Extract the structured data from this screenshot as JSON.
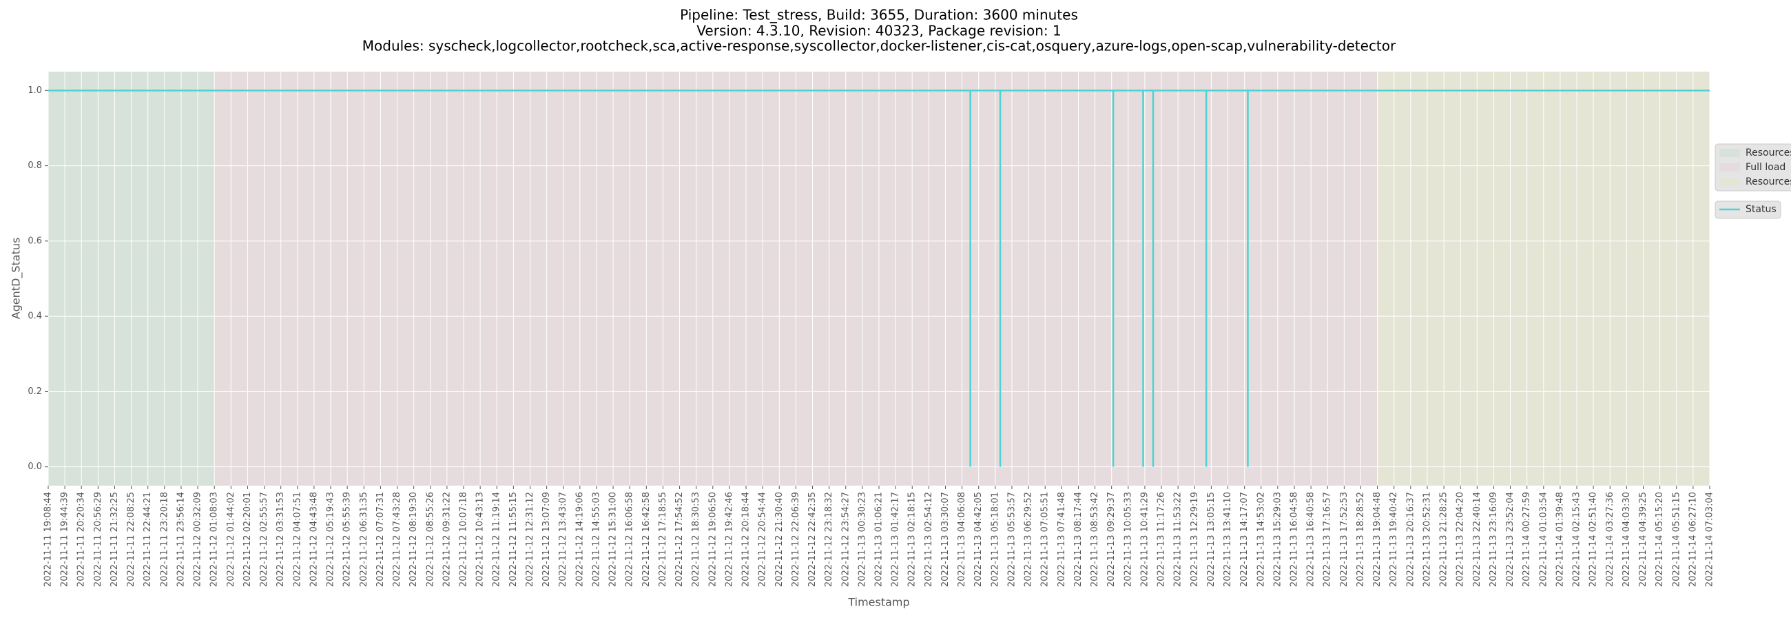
{
  "chart_data": {
    "type": "line",
    "title": [
      "Pipeline: Test_stress, Build: 3655, Duration: 3600 minutes",
      "Version: 4.3.10, Revision: 40323, Package revision: 1",
      "Modules: syscheck,logcollector,rootcheck,sca,active-response,syscollector,docker-listener,cis-cat,osquery,azure-logs,open-scap,vulnerability-detector"
    ],
    "x_label": "Timestamp",
    "y_label": "AgentD_Status",
    "xlim": [
      0,
      100
    ],
    "ylim": [
      -0.05,
      1.05
    ],
    "yticks": [
      {
        "value": 0,
        "label": "0.0"
      },
      0.2,
      0.4,
      0.6,
      0.8,
      {
        "value": 1,
        "label": "1.0"
      }
    ],
    "grid": true,
    "legend": "right",
    "spans": [
      {
        "name": "Resources",
        "start": 0,
        "end": 10,
        "color": "#b7dcc4"
      },
      {
        "name": "Full load",
        "start": 10,
        "end": 80,
        "color": "#ecc6c9"
      },
      {
        "name": "Resources",
        "start": 80,
        "end": 100,
        "color": "#e6e3b4"
      }
    ],
    "series": [
      {
        "name": "Status",
        "color": "#4fd2d2",
        "x": [
          0,
          55.5,
          55.5,
          55.5,
          57.3,
          57.3,
          57.3,
          64.1,
          64.1,
          64.1,
          65.9,
          65.9,
          65.9,
          66.5,
          66.5,
          66.5,
          69.7,
          69.7,
          69.7,
          72.2,
          72.2,
          72.2,
          100
        ],
        "values": [
          1,
          1,
          0,
          1,
          1,
          0,
          1,
          1,
          0,
          1,
          1,
          0,
          1,
          1,
          0,
          1,
          1,
          0,
          1,
          1,
          0,
          1,
          1
        ]
      }
    ],
    "xticks": [
      {
        "value": 0,
        "label": "2022-11-11 19:08:44"
      },
      {
        "value": 1,
        "label": "2022-11-11 19:44:39"
      },
      {
        "value": 2,
        "label": "2022-11-11 20:20:34"
      },
      {
        "value": 3,
        "label": "2022-11-11 20:56:29"
      },
      {
        "value": 4,
        "label": "2022-11-11 21:32:25"
      },
      {
        "value": 5,
        "label": "2022-11-11 22:08:25"
      },
      {
        "value": 6,
        "label": "2022-11-11 22:44:21"
      },
      {
        "value": 7,
        "label": "2022-11-11 23:20:18"
      },
      {
        "value": 8,
        "label": "2022-11-11 23:56:14"
      },
      {
        "value": 9,
        "label": "2022-11-12 00:32:09"
      },
      {
        "value": 10,
        "label": "2022-11-12 01:08:03"
      },
      {
        "value": 11,
        "label": "2022-11-12 01:44:02"
      },
      {
        "value": 12,
        "label": "2022-11-12 02:20:01"
      },
      {
        "value": 13,
        "label": "2022-11-12 02:55:57"
      },
      {
        "value": 14,
        "label": "2022-11-12 03:31:53"
      },
      {
        "value": 15,
        "label": "2022-11-12 04:07:51"
      },
      {
        "value": 16,
        "label": "2022-11-12 04:43:48"
      },
      {
        "value": 17,
        "label": "2022-11-12 05:19:43"
      },
      {
        "value": 18,
        "label": "2022-11-12 05:55:39"
      },
      {
        "value": 19,
        "label": "2022-11-12 06:31:35"
      },
      {
        "value": 20,
        "label": "2022-11-12 07:07:31"
      },
      {
        "value": 21,
        "label": "2022-11-12 07:43:28"
      },
      {
        "value": 22,
        "label": "2022-11-12 08:19:30"
      },
      {
        "value": 23,
        "label": "2022-11-12 08:55:26"
      },
      {
        "value": 24,
        "label": "2022-11-12 09:31:22"
      },
      {
        "value": 25,
        "label": "2022-11-12 10:07:18"
      },
      {
        "value": 26,
        "label": "2022-11-12 10:43:13"
      },
      {
        "value": 27,
        "label": "2022-11-12 11:19:14"
      },
      {
        "value": 28,
        "label": "2022-11-12 11:55:15"
      },
      {
        "value": 29,
        "label": "2022-11-12 12:31:12"
      },
      {
        "value": 30,
        "label": "2022-11-12 13:07:09"
      },
      {
        "value": 31,
        "label": "2022-11-12 13:43:07"
      },
      {
        "value": 32,
        "label": "2022-11-12 14:19:06"
      },
      {
        "value": 33,
        "label": "2022-11-12 14:55:03"
      },
      {
        "value": 34,
        "label": "2022-11-12 15:31:00"
      },
      {
        "value": 35,
        "label": "2022-11-12 16:06:58"
      },
      {
        "value": 36,
        "label": "2022-11-12 16:42:58"
      },
      {
        "value": 37,
        "label": "2022-11-12 17:18:55"
      },
      {
        "value": 38,
        "label": "2022-11-12 17:54:52"
      },
      {
        "value": 39,
        "label": "2022-11-12 18:30:53"
      },
      {
        "value": 40,
        "label": "2022-11-12 19:06:50"
      },
      {
        "value": 41,
        "label": "2022-11-12 19:42:46"
      },
      {
        "value": 42,
        "label": "2022-11-12 20:18:44"
      },
      {
        "value": 43,
        "label": "2022-11-12 20:54:44"
      },
      {
        "value": 44,
        "label": "2022-11-12 21:30:40"
      },
      {
        "value": 45,
        "label": "2022-11-12 22:06:39"
      },
      {
        "value": 46,
        "label": "2022-11-12 22:42:35"
      },
      {
        "value": 47,
        "label": "2022-11-12 23:18:32"
      },
      {
        "value": 48,
        "label": "2022-11-12 23:54:27"
      },
      {
        "value": 49,
        "label": "2022-11-13 00:30:23"
      },
      {
        "value": 50,
        "label": "2022-11-13 01:06:21"
      },
      {
        "value": 51,
        "label": "2022-11-13 01:42:17"
      },
      {
        "value": 52,
        "label": "2022-11-13 02:18:15"
      },
      {
        "value": 53,
        "label": "2022-11-13 02:54:12"
      },
      {
        "value": 54,
        "label": "2022-11-13 03:30:07"
      },
      {
        "value": 55,
        "label": "2022-11-13 04:06:08"
      },
      {
        "value": 56,
        "label": "2022-11-13 04:42:05"
      },
      {
        "value": 57,
        "label": "2022-11-13 05:18:01"
      },
      {
        "value": 58,
        "label": "2022-11-13 05:53:57"
      },
      {
        "value": 59,
        "label": "2022-11-13 06:29:52"
      },
      {
        "value": 60,
        "label": "2022-11-13 07:05:51"
      },
      {
        "value": 61,
        "label": "2022-11-13 07:41:48"
      },
      {
        "value": 62,
        "label": "2022-11-13 08:17:44"
      },
      {
        "value": 63,
        "label": "2022-11-13 08:53:42"
      },
      {
        "value": 64,
        "label": "2022-11-13 09:29:37"
      },
      {
        "value": 65,
        "label": "2022-11-13 10:05:33"
      },
      {
        "value": 66,
        "label": "2022-11-13 10:41:29"
      },
      {
        "value": 67,
        "label": "2022-11-13 11:17:26"
      },
      {
        "value": 68,
        "label": "2022-11-13 11:53:22"
      },
      {
        "value": 69,
        "label": "2022-11-13 12:29:19"
      },
      {
        "value": 70,
        "label": "2022-11-13 13:05:15"
      },
      {
        "value": 71,
        "label": "2022-11-13 13:41:10"
      },
      {
        "value": 72,
        "label": "2022-11-13 14:17:07"
      },
      {
        "value": 73,
        "label": "2022-11-13 14:53:02"
      },
      {
        "value": 74,
        "label": "2022-11-13 15:29:03"
      },
      {
        "value": 75,
        "label": "2022-11-13 16:04:58"
      },
      {
        "value": 76,
        "label": "2022-11-13 16:40:58"
      },
      {
        "value": 77,
        "label": "2022-11-13 17:16:57"
      },
      {
        "value": 78,
        "label": "2022-11-13 17:52:53"
      },
      {
        "value": 79,
        "label": "2022-11-13 18:28:52"
      },
      {
        "value": 80,
        "label": "2022-11-13 19:04:48"
      },
      {
        "value": 81,
        "label": "2022-11-13 19:40:42"
      },
      {
        "value": 82,
        "label": "2022-11-13 20:16:37"
      },
      {
        "value": 83,
        "label": "2022-11-13 20:52:31"
      },
      {
        "value": 84,
        "label": "2022-11-13 21:28:25"
      },
      {
        "value": 85,
        "label": "2022-11-13 22:04:20"
      },
      {
        "value": 86,
        "label": "2022-11-13 22:40:14"
      },
      {
        "value": 87,
        "label": "2022-11-13 23:16:09"
      },
      {
        "value": 88,
        "label": "2022-11-13 23:52:04"
      },
      {
        "value": 89,
        "label": "2022-11-14 00:27:59"
      },
      {
        "value": 90,
        "label": "2022-11-14 01:03:54"
      },
      {
        "value": 91,
        "label": "2022-11-14 01:39:48"
      },
      {
        "value": 92,
        "label": "2022-11-14 02:15:43"
      },
      {
        "value": 93,
        "label": "2022-11-14 02:51:40"
      },
      {
        "value": 94,
        "label": "2022-11-14 03:27:36"
      },
      {
        "value": 95,
        "label": "2022-11-14 04:03:30"
      },
      {
        "value": 96,
        "label": "2022-11-14 04:39:25"
      },
      {
        "value": 97,
        "label": "2022-11-14 05:15:20"
      },
      {
        "value": 98,
        "label": "2022-11-14 05:51:15"
      },
      {
        "value": 99,
        "label": "2022-11-14 06:27:10"
      },
      {
        "value": 100,
        "label": "2022-11-14 07:03:04"
      }
    ]
  }
}
